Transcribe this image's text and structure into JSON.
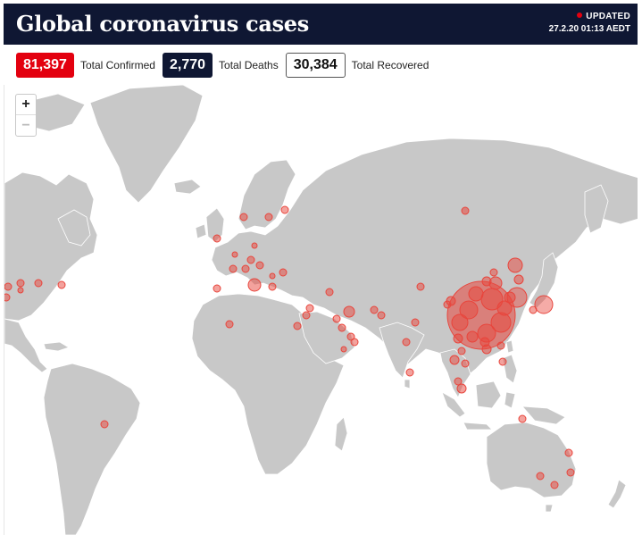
{
  "header": {
    "title": "Global coronavirus cases",
    "updated_label": "UPDATED",
    "updated_time": "27.2.20 01:13 AEDT"
  },
  "stats": {
    "confirmed_value": "81,397",
    "confirmed_label": "Total Confirmed",
    "deaths_value": "2,770",
    "deaths_label": "Total Deaths",
    "recovered_value": "30,384",
    "recovered_label": "Total Recovered"
  },
  "zoom": {
    "in_label": "+",
    "out_label": "−"
  },
  "colors": {
    "header_bg": "#0f1733",
    "accent_red": "#e3000f",
    "land": "#c8c8c8",
    "border": "#ffffff",
    "bubble": "#e8453c"
  },
  "icons": {
    "zoom_in": "plus-icon",
    "zoom_out": "minus-icon",
    "updated_dot": "live-dot-icon"
  }
}
